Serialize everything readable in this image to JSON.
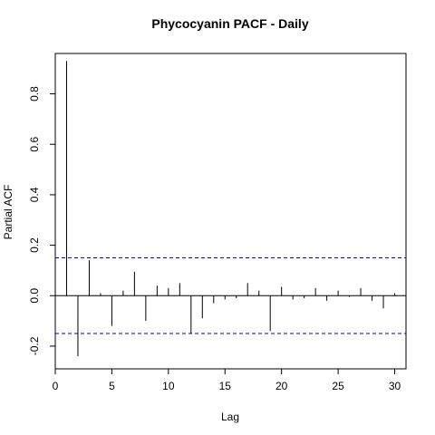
{
  "chart_data": {
    "type": "bar",
    "title": "Phycocyanin PACF - Daily",
    "xlabel": "Lag",
    "ylabel": "Partial ACF",
    "xlim": [
      0,
      31
    ],
    "ylim": [
      -0.29,
      0.96
    ],
    "x_ticks": [
      0,
      5,
      10,
      15,
      20,
      25,
      30
    ],
    "x_tick_labels": [
      "0",
      "5",
      "10",
      "15",
      "20",
      "25",
      "30"
    ],
    "y_ticks": [
      -0.2,
      0.0,
      0.2,
      0.4,
      0.6,
      0.8
    ],
    "y_tick_labels": [
      "-0.2",
      "0.0",
      "0.2",
      "0.4",
      "0.6",
      "0.8"
    ],
    "confidence_bounds": [
      0.15,
      -0.15
    ],
    "lags": [
      1,
      2,
      3,
      4,
      5,
      6,
      7,
      8,
      9,
      10,
      11,
      12,
      13,
      14,
      15,
      16,
      17,
      18,
      19,
      20,
      21,
      22,
      23,
      24,
      25,
      26,
      27,
      28,
      29,
      30
    ],
    "values": [
      0.93,
      -0.24,
      0.14,
      0.01,
      -0.12,
      0.02,
      0.095,
      -0.1,
      0.04,
      0.03,
      0.05,
      -0.15,
      -0.09,
      -0.03,
      -0.015,
      -0.01,
      0.05,
      0.02,
      -0.14,
      0.035,
      -0.015,
      -0.01,
      0.03,
      -0.02,
      0.02,
      -0.005,
      0.03,
      -0.02,
      -0.05,
      0.01
    ],
    "colors": {
      "bars": "#000000",
      "bounds": "#0000CC",
      "zero_line": "#000000",
      "frame": "#000000"
    },
    "grid": false
  }
}
